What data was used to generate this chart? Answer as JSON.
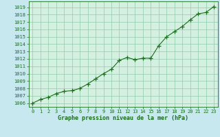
{
  "x": [
    0,
    1,
    2,
    3,
    4,
    5,
    6,
    7,
    8,
    9,
    10,
    11,
    12,
    13,
    14,
    15,
    16,
    17,
    18,
    19,
    20,
    21,
    22,
    23
  ],
  "y": [
    1006.0,
    1006.5,
    1006.8,
    1007.3,
    1007.6,
    1007.7,
    1008.0,
    1008.6,
    1009.3,
    1010.0,
    1010.6,
    1011.8,
    1012.2,
    1011.9,
    1012.1,
    1012.1,
    1013.8,
    1015.0,
    1015.7,
    1016.4,
    1017.3,
    1018.1,
    1018.3,
    1019.1
  ],
  "line_color": "#1a6e1a",
  "marker": "+",
  "markersize": 4,
  "linewidth": 0.8,
  "background_color": "#c8e8f0",
  "plot_bg_color": "#d4f0e0",
  "grid_color": "#90c8a8",
  "xlabel": "Graphe pression niveau de la mer (hPa)",
  "xlabel_color": "#1a6e1a",
  "tick_color": "#1a6e1a",
  "ylim": [
    1005.5,
    1019.8
  ],
  "xlim": [
    -0.5,
    23.5
  ],
  "yticks": [
    1006,
    1007,
    1008,
    1009,
    1010,
    1011,
    1012,
    1013,
    1014,
    1015,
    1016,
    1017,
    1018,
    1019
  ],
  "xticks": [
    0,
    1,
    2,
    3,
    4,
    5,
    6,
    7,
    8,
    9,
    10,
    11,
    12,
    13,
    14,
    15,
    16,
    17,
    18,
    19,
    20,
    21,
    22,
    23
  ],
  "tick_fontsize": 5,
  "xlabel_fontsize": 6
}
